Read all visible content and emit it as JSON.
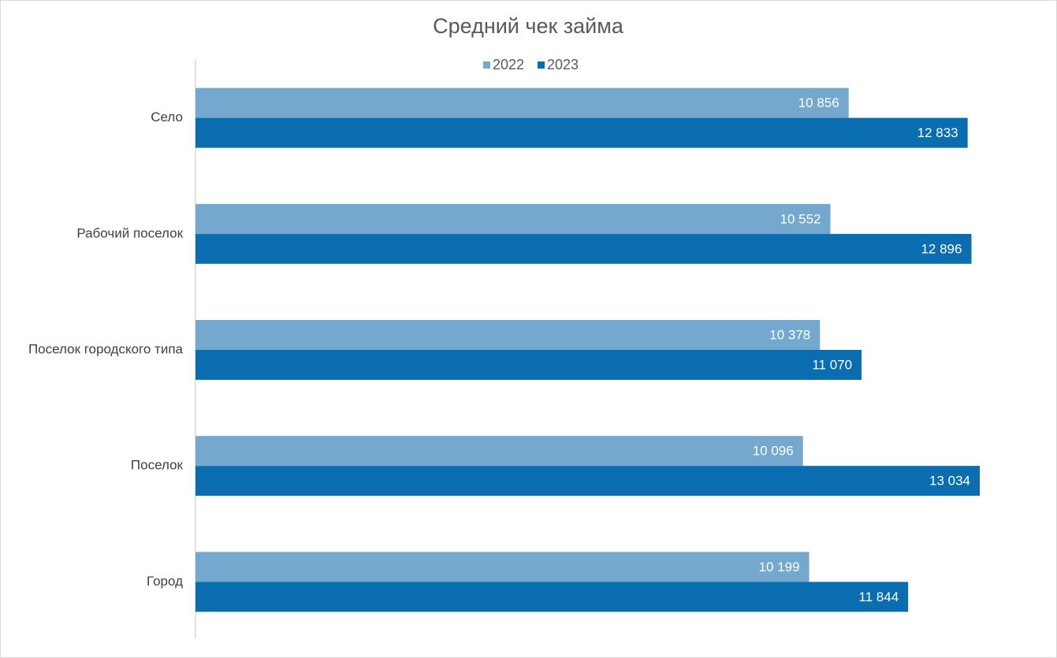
{
  "chart_data": {
    "type": "hbar",
    "title": "Средний чек займа",
    "categories": [
      "Село",
      "Рабочий поселок",
      "Поселок городского типа",
      "Поселок",
      "Город"
    ],
    "series": [
      {
        "name": "2022",
        "color": "#75a8cf",
        "values": [
          10856,
          10552,
          10378,
          10096,
          10199
        ],
        "value_labels": [
          "10 856",
          "10 552",
          "10 378",
          "10 096",
          "10 199"
        ]
      },
      {
        "name": "2023",
        "color": "#0a6daf",
        "values": [
          12833,
          12896,
          11070,
          13034,
          11844
        ],
        "value_labels": [
          "12 833",
          "12 896",
          "11 070",
          "13 034",
          "11 844"
        ]
      }
    ],
    "legend": "top"
  }
}
